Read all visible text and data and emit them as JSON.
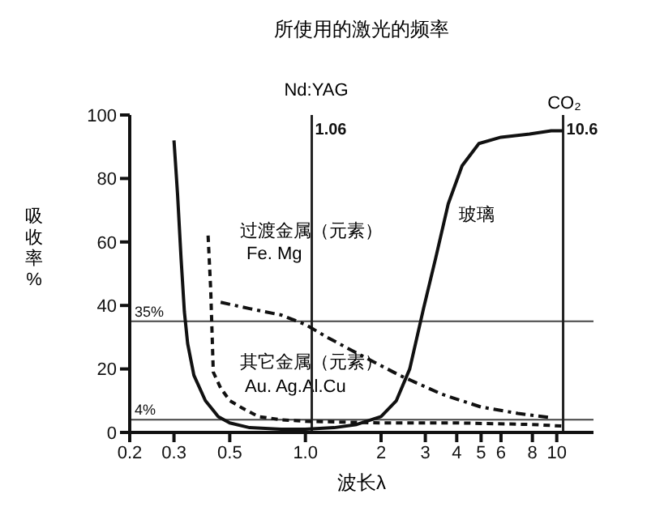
{
  "chart_data": {
    "type": "line",
    "title": "所使用的激光的频率",
    "xlabel": "波长λ",
    "ylabel": "吸收率%",
    "log": "x",
    "xlim": [
      0.2,
      14
    ],
    "ylim": [
      0,
      100
    ],
    "xticks": [
      0.2,
      0.3,
      0.5,
      {
        "value": 1,
        "label": "1.0"
      },
      2,
      3,
      4,
      5,
      6,
      8,
      10
    ],
    "yticks": [
      0,
      20,
      40,
      60,
      80,
      100
    ],
    "grid": false,
    "legend": false,
    "marker": "none",
    "series": [
      {
        "color": "#111111",
        "line_style": "solid",
        "x": [
          0.3,
          0.31,
          0.32,
          0.33,
          0.34,
          0.36,
          0.4,
          0.45,
          0.5,
          0.6,
          0.8,
          1.0,
          1.3,
          1.6,
          2.0,
          2.3,
          2.6,
          2.95,
          3.3,
          3.7,
          4.2,
          4.9,
          6,
          7.8,
          9.5,
          10.6
        ],
        "values": [
          92,
          75,
          55,
          38,
          28,
          18,
          10,
          5,
          3,
          1.5,
          1,
          1,
          1.5,
          2.5,
          5,
          10,
          20,
          39,
          55,
          72,
          84,
          91,
          93,
          94,
          95,
          95
        ]
      },
      {
        "color": "#111111",
        "line_style": "dashed",
        "x": [
          0.41,
          0.42,
          0.43,
          0.46,
          0.5,
          0.56,
          0.65,
          0.8,
          1.0,
          2,
          4,
          8,
          10.5
        ],
        "values": [
          62,
          45,
          19,
          14,
          10,
          7.7,
          5,
          4,
          3.5,
          3,
          3,
          2.5,
          2
        ]
      },
      {
        "color": "#111111",
        "line_style": "dotted",
        "x": [
          0.46,
          0.6,
          0.8,
          1.0,
          1.22,
          1.6,
          2.37,
          3.5,
          5,
          7,
          9.6
        ],
        "values": [
          41,
          39,
          37,
          34,
          30,
          25,
          18,
          12,
          8,
          6,
          4.6
        ]
      }
    ],
    "ref_lines": [
      {
        "axis": "y",
        "value": 35,
        "label": "35%"
      },
      {
        "axis": "y",
        "value": 4,
        "label": "4%"
      },
      {
        "axis": "x",
        "value": 1.06,
        "label": "1.06"
      },
      {
        "axis": "x",
        "value": 10.6,
        "label": "10.6"
      }
    ],
    "annotations": [
      "Nd:YAG",
      "CO₂",
      "玻璃",
      "过渡金属（元素）",
      "Fe. Mg",
      "其它金属（元素）",
      "Au. Ag.Al.Cu"
    ]
  }
}
